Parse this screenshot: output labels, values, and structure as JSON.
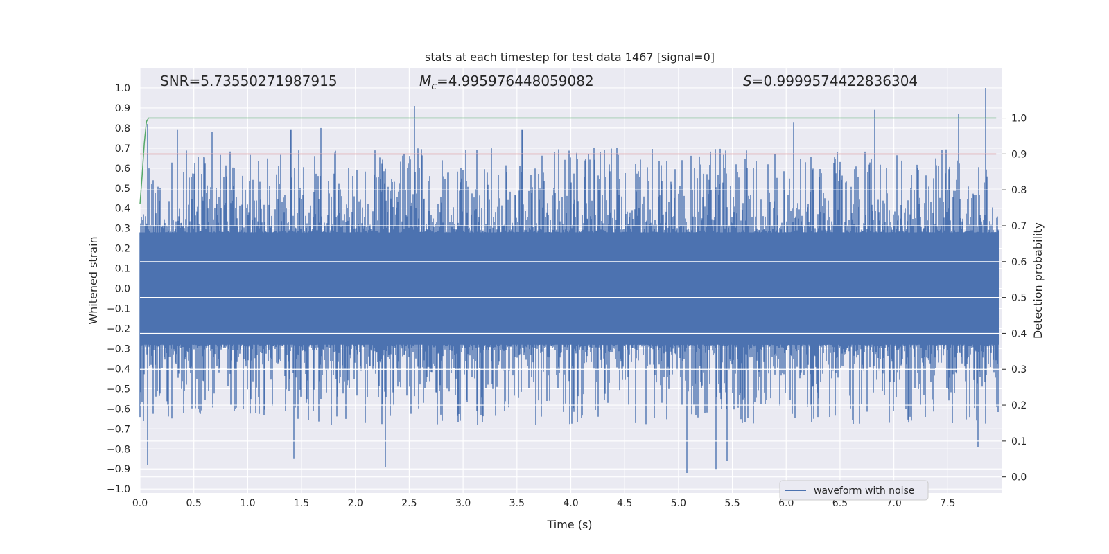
{
  "chart_data": {
    "type": "line",
    "title": "stats at each timestep for test data 1467 [signal=0]",
    "xlabel": "Time (s)",
    "ylabel": "Whitened strain",
    "y2label": "Detection probability",
    "xlim": [
      0.0,
      8.0
    ],
    "ylim": [
      -1.02,
      1.1
    ],
    "y2lim": [
      -0.045,
      1.14
    ],
    "grid": true,
    "legend_position": "bottom-right",
    "x_ticks": [
      "0.0",
      "0.5",
      "1.0",
      "1.5",
      "2.0",
      "2.5",
      "3.0",
      "3.5",
      "4.0",
      "4.5",
      "5.0",
      "5.5",
      "6.0",
      "6.5",
      "7.0",
      "7.5"
    ],
    "y_ticks": [
      "1.0",
      "0.9",
      "0.8",
      "0.7",
      "0.6",
      "0.5",
      "0.4",
      "0.3",
      "0.2",
      "0.1",
      "0.0",
      "−0.1",
      "−0.2",
      "−0.3",
      "−0.4",
      "−0.5",
      "−0.6",
      "−0.7",
      "−0.8",
      "−0.9",
      "−1.0"
    ],
    "y2_ticks": [
      "1.0",
      "0.9",
      "0.8",
      "0.7",
      "0.6",
      "0.5",
      "0.4",
      "0.3",
      "0.2",
      "0.1",
      "0.0"
    ],
    "annotations": {
      "snr": "SNR=5.73550271987915",
      "mc_symbol": "M",
      "mc_sub": "c",
      "mc_value": "=4.995976448059082",
      "s_symbol": "S",
      "s_value": "=0.9999574422836304"
    },
    "series": [
      {
        "name": "waveform with noise",
        "axis": "left",
        "color": "#4c72b0",
        "description_of_values": "whitened noise samples spanning roughly -0.92 to 1.0 across 0.0–8.0 s",
        "peaks": [
          {
            "x": 0.07,
            "y": 0.82
          },
          {
            "x": 0.35,
            "y": 0.79
          },
          {
            "x": 0.67,
            "y": 0.78
          },
          {
            "x": 1.4,
            "y": 0.79
          },
          {
            "x": 1.68,
            "y": 0.8
          },
          {
            "x": 2.55,
            "y": 0.91
          },
          {
            "x": 3.55,
            "y": 0.79
          },
          {
            "x": 6.07,
            "y": 0.83
          },
          {
            "x": 6.82,
            "y": 0.89
          },
          {
            "x": 7.6,
            "y": 0.87
          },
          {
            "x": 7.85,
            "y": 1.0
          }
        ],
        "troughs": [
          {
            "x": 0.07,
            "y": -0.88
          },
          {
            "x": 1.43,
            "y": -0.85
          },
          {
            "x": 2.28,
            "y": -0.89
          },
          {
            "x": 5.08,
            "y": -0.92
          },
          {
            "x": 5.35,
            "y": -0.9
          },
          {
            "x": 5.45,
            "y": -0.86
          },
          {
            "x": 7.78,
            "y": -0.79
          }
        ]
      },
      {
        "name": "",
        "axis": "right",
        "color": "#55a868",
        "x": [
          0.0,
          0.02,
          0.04,
          0.06,
          0.08,
          0.12,
          7.95
        ],
        "values": [
          0.76,
          0.84,
          0.93,
          0.99,
          1.0,
          1.0,
          1.0
        ]
      },
      {
        "name": "",
        "axis": "right",
        "color": "#c44e52",
        "x": [
          0.0,
          7.95
        ],
        "values": [
          0.9,
          0.9
        ]
      }
    ]
  }
}
